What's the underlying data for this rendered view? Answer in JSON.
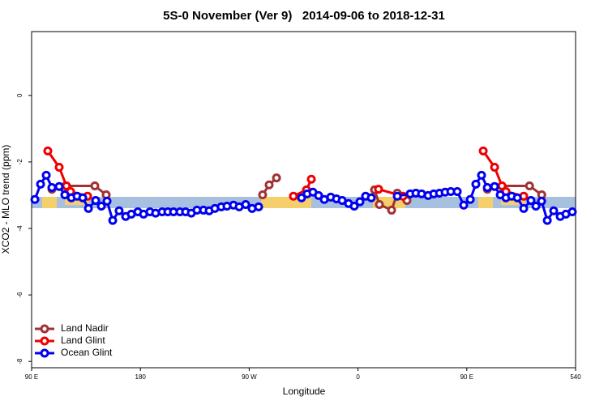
{
  "chart_data": {
    "type": "line",
    "title": "5S-0 November (Ver 9)   2014-09-06 to 2018-12-31",
    "xlabel": "Longitude",
    "ylabel": "XCO2 - MLO trend (ppm)",
    "xlim": [
      90,
      540
    ],
    "ylim": [
      -8.19,
      1.92
    ],
    "xticks": [
      {
        "value": 90,
        "label": "90 E"
      },
      180,
      {
        "value": 270,
        "label": "90 W"
      },
      {
        "value": 360,
        "label": "0"
      },
      {
        "value": 450,
        "label": "90 E"
      },
      540
    ],
    "yticks": [
      0,
      -2,
      -4,
      -6,
      -8
    ],
    "legend": "bottom-left",
    "series": [
      {
        "name": "Land Nadir",
        "color": "#a03232",
        "x": [
          106.8,
          118.2,
          142.3,
          151.7,
          null,
          281.1,
          286.5,
          292.6,
          null,
          373.7,
          377.7,
          387.8,
          392.5,
          400.5,
          null,
          467.0,
          479.1,
          501.9,
          512.0
        ],
        "values": [
          -2.82,
          -2.72,
          -2.72,
          -2.99,
          null,
          -2.99,
          -2.69,
          -2.48,
          null,
          -2.84,
          -3.28,
          -3.45,
          -2.94,
          -3.16,
          null,
          -2.82,
          -2.72,
          -2.72,
          -2.99
        ]
      },
      {
        "name": "Land Glint",
        "color": "#ee0000",
        "x": [
          103.4,
          112.8,
          118.8,
          122.2,
          136.3,
          null,
          306.6,
          317.4,
          321.4,
          null,
          377.0,
          397.2,
          null,
          463.6,
          473.0,
          479.1,
          482.4,
          497.1
        ],
        "values": [
          -1.67,
          -2.16,
          -2.72,
          -2.89,
          -3.03,
          null,
          -3.03,
          -2.84,
          -2.52,
          null,
          -2.82,
          -3.03,
          null,
          -1.67,
          -2.16,
          -2.72,
          -2.89,
          -3.03
        ]
      },
      {
        "name": "Ocean Glint",
        "color": "#0000ee",
        "x": [
          92.7,
          97.4,
          102.1,
          106.8,
          112.8,
          117.5,
          122.9,
          127.6,
          132.3,
          137.0,
          143.0,
          147.7,
          152.4,
          157.1,
          162.4,
          167.8,
          172.5,
          177.9,
          182.6,
          187.9,
          192.6,
          198.0,
          202.7,
          207.4,
          212.7,
          217.4,
          222.1,
          226.8,
          232.2,
          236.9,
          241.6,
          246.9,
          251.6,
          257.0,
          261.7,
          267.1,
          272.4,
          277.8,
          null,
          313.3,
          318.0,
          322.7,
          327.4,
          332.1,
          337.5,
          342.2,
          346.9,
          352.2,
          356.9,
          361.6,
          366.3,
          371.0,
          null,
          392.5,
          403.2,
          407.9,
          412.6,
          418.0,
          422.7,
          427.4,
          432.1,
          436.8,
          442.1,
          447.5,
          452.9,
          457.5,
          462.2,
          467.0,
          473.0,
          477.7,
          482.4,
          487.1,
          491.8,
          497.1,
          503.1,
          507.2,
          511.9,
          516.6,
          521.9,
          527.3,
          532.0,
          537.3
        ],
        "values": [
          -3.13,
          -2.67,
          -2.4,
          -2.77,
          -2.74,
          -2.99,
          -3.08,
          -3.03,
          -3.08,
          -3.4,
          -3.16,
          -3.33,
          -3.18,
          -3.76,
          -3.47,
          -3.64,
          -3.57,
          -3.5,
          -3.57,
          -3.5,
          -3.54,
          -3.5,
          -3.5,
          -3.5,
          -3.5,
          -3.5,
          -3.54,
          -3.45,
          -3.45,
          -3.47,
          -3.4,
          -3.35,
          -3.33,
          -3.3,
          -3.35,
          -3.28,
          -3.4,
          -3.35,
          null,
          -3.08,
          -2.96,
          -2.91,
          -3.01,
          -3.13,
          -3.06,
          -3.11,
          -3.16,
          -3.25,
          -3.33,
          -3.2,
          -3.03,
          -3.08,
          null,
          -3.03,
          -2.96,
          -2.94,
          -2.96,
          -3.01,
          -2.96,
          -2.94,
          -2.91,
          -2.89,
          -2.89,
          -3.3,
          -3.13,
          -2.67,
          -2.4,
          -2.77,
          -2.74,
          -2.99,
          -3.08,
          -3.03,
          -3.08,
          -3.4,
          -3.16,
          -3.33,
          -3.18,
          -3.76,
          -3.47,
          -3.64,
          -3.57,
          -3.5
        ]
      }
    ]
  }
}
